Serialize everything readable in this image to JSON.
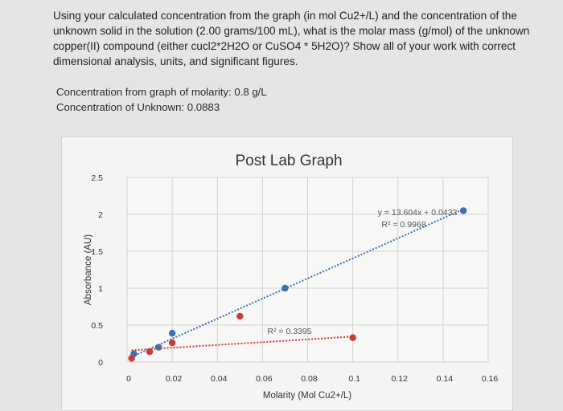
{
  "question": {
    "text": "Using your calculated concentration from the graph (in mol Cu2+/L) and the concentration of the unknown solid in the solution (2.00 grams/100 mL), what is the molar mass (g/mol) of the unknown copper(II) compound (either cucl2*2H2O or CuSO4 * 5H2O)? Show all of your work with correct dimensional analysis, units, and significant figures."
  },
  "answers": {
    "graph_concentration": "Concentration from graph of molarity: 0.8 g/L",
    "unknown_concentration": "Concentration of Unknown: 0.0883"
  },
  "chart_data": {
    "type": "scatter",
    "title": "Post Lab Graph",
    "xlabel": "Molarity (Mol Cu2+/L)",
    "ylabel": "Absorbance (AU)",
    "xlim": [
      0,
      0.16
    ],
    "ylim": [
      0,
      2.5
    ],
    "x_ticks": [
      "0",
      "0.02",
      "0.04",
      "0.06",
      "0.08",
      "0.1",
      "0.12",
      "0.14",
      "0.16"
    ],
    "y_ticks": [
      "0",
      "0.5",
      "1",
      "1.5",
      "2",
      "2.5"
    ],
    "grid": true,
    "series": [
      {
        "color": "#3d6fb5",
        "points": [
          [
            0.003,
            0.11
          ],
          [
            0.014,
            0.2
          ],
          [
            0.02,
            0.39
          ],
          [
            0.07,
            1.0
          ],
          [
            0.149,
            2.05
          ]
        ],
        "trendline": {
          "slope": 13.604,
          "intercept": 0.0433,
          "x_range": [
            0.002,
            0.149
          ]
        },
        "equation_label": "y = 13.604x + 0.0433",
        "r2_label": "R² = 0.9968"
      },
      {
        "color": "#cc3b32",
        "points": [
          [
            0.002,
            0.05
          ],
          [
            0.01,
            0.14
          ],
          [
            0.02,
            0.26
          ],
          [
            0.05,
            0.62
          ],
          [
            0.1,
            0.33
          ]
        ],
        "trendline": {
          "slope": 1.9,
          "intercept": 0.155,
          "x_range": [
            0.002,
            0.1
          ]
        },
        "r2_label": "R² = 0.3395"
      }
    ]
  }
}
